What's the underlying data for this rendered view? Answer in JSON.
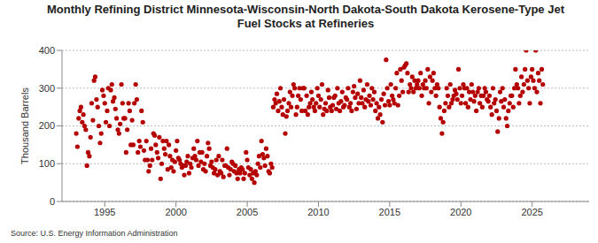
{
  "chart_data": {
    "type": "scatter",
    "title": "Monthly Refining District Minnesota-Wisconsin-North Dakota-South Dakota Kerosene-Type Jet Fuel Stocks at Refineries",
    "y_label": "Thousand Barrels",
    "source": "Source: U.S. Energy Information Administration",
    "color": "#b40000",
    "marker": "circle",
    "grid": true,
    "xlim": [
      1992,
      2029
    ],
    "xticks": [
      1995,
      2000,
      2005,
      2010,
      2015,
      2020,
      2025
    ],
    "ylim": [
      0,
      400
    ],
    "yticks": [
      0,
      100,
      200,
      300,
      400
    ],
    "x": [
      1993.0,
      1993.08,
      1993.17,
      1993.25,
      1993.33,
      1993.42,
      1993.5,
      1993.58,
      1993.67,
      1993.75,
      1993.83,
      1993.92,
      1994.0,
      1994.08,
      1994.17,
      1994.25,
      1994.33,
      1994.42,
      1994.5,
      1994.58,
      1994.67,
      1994.75,
      1994.83,
      1994.92,
      1995.0,
      1995.08,
      1995.17,
      1995.25,
      1995.33,
      1995.42,
      1995.5,
      1995.58,
      1995.67,
      1995.75,
      1995.83,
      1995.92,
      1996.0,
      1996.08,
      1996.17,
      1996.25,
      1996.33,
      1996.42,
      1996.5,
      1996.58,
      1996.67,
      1996.75,
      1996.83,
      1996.92,
      1997.0,
      1997.08,
      1997.17,
      1997.25,
      1997.33,
      1997.42,
      1997.5,
      1997.58,
      1997.67,
      1997.75,
      1997.83,
      1997.92,
      1998.0,
      1998.08,
      1998.17,
      1998.25,
      1998.33,
      1998.42,
      1998.5,
      1998.58,
      1998.67,
      1998.75,
      1998.83,
      1998.92,
      1999.0,
      1999.08,
      1999.17,
      1999.25,
      1999.33,
      1999.42,
      1999.5,
      1999.58,
      1999.67,
      1999.75,
      1999.83,
      1999.92,
      2000.0,
      2000.08,
      2000.17,
      2000.25,
      2000.33,
      2000.42,
      2000.5,
      2000.58,
      2000.67,
      2000.75,
      2000.83,
      2000.92,
      2001.0,
      2001.08,
      2001.17,
      2001.25,
      2001.33,
      2001.42,
      2001.5,
      2001.58,
      2001.67,
      2001.75,
      2001.83,
      2001.92,
      2002.0,
      2002.08,
      2002.17,
      2002.25,
      2002.33,
      2002.42,
      2002.5,
      2002.58,
      2002.67,
      2002.75,
      2002.83,
      2002.92,
      2003.0,
      2003.08,
      2003.17,
      2003.25,
      2003.33,
      2003.42,
      2003.5,
      2003.58,
      2003.67,
      2003.75,
      2003.83,
      2003.92,
      2004.0,
      2004.08,
      2004.17,
      2004.25,
      2004.33,
      2004.42,
      2004.5,
      2004.58,
      2004.67,
      2004.75,
      2004.83,
      2004.92,
      2005.0,
      2005.08,
      2005.17,
      2005.25,
      2005.33,
      2005.42,
      2005.5,
      2005.58,
      2005.67,
      2005.75,
      2005.83,
      2005.92,
      2006.0,
      2006.08,
      2006.17,
      2006.25,
      2006.33,
      2006.42,
      2006.5,
      2006.58,
      2006.67,
      2006.75,
      2006.83,
      2006.92,
      2007.0,
      2007.08,
      2007.17,
      2007.25,
      2007.33,
      2007.42,
      2007.5,
      2007.58,
      2007.67,
      2007.75,
      2007.83,
      2007.92,
      2008.0,
      2008.08,
      2008.17,
      2008.25,
      2008.33,
      2008.42,
      2008.5,
      2008.58,
      2008.67,
      2008.75,
      2008.83,
      2008.92,
      2009.0,
      2009.08,
      2009.17,
      2009.25,
      2009.33,
      2009.42,
      2009.5,
      2009.58,
      2009.67,
      2009.75,
      2009.83,
      2009.92,
      2010.0,
      2010.08,
      2010.17,
      2010.25,
      2010.33,
      2010.42,
      2010.5,
      2010.58,
      2010.67,
      2010.75,
      2010.83,
      2010.92,
      2011.0,
      2011.08,
      2011.17,
      2011.25,
      2011.33,
      2011.42,
      2011.5,
      2011.58,
      2011.67,
      2011.75,
      2011.83,
      2011.92,
      2012.0,
      2012.08,
      2012.17,
      2012.25,
      2012.33,
      2012.42,
      2012.5,
      2012.58,
      2012.67,
      2012.75,
      2012.83,
      2012.92,
      2013.0,
      2013.08,
      2013.17,
      2013.25,
      2013.33,
      2013.42,
      2013.5,
      2013.58,
      2013.67,
      2013.75,
      2013.83,
      2013.92,
      2014.0,
      2014.08,
      2014.17,
      2014.25,
      2014.33,
      2014.42,
      2014.5,
      2014.58,
      2014.67,
      2014.75,
      2014.83,
      2014.92,
      2015.0,
      2015.08,
      2015.17,
      2015.25,
      2015.33,
      2015.42,
      2015.5,
      2015.58,
      2015.67,
      2015.75,
      2015.83,
      2015.92,
      2016.0,
      2016.08,
      2016.17,
      2016.25,
      2016.33,
      2016.42,
      2016.5,
      2016.58,
      2016.67,
      2016.75,
      2016.83,
      2016.92,
      2017.0,
      2017.08,
      2017.17,
      2017.25,
      2017.33,
      2017.42,
      2017.5,
      2017.58,
      2017.67,
      2017.75,
      2017.83,
      2017.92,
      2018.0,
      2018.08,
      2018.17,
      2018.25,
      2018.33,
      2018.42,
      2018.5,
      2018.58,
      2018.67,
      2018.75,
      2018.83,
      2018.92,
      2019.0,
      2019.08,
      2019.17,
      2019.25,
      2019.33,
      2019.42,
      2019.5,
      2019.58,
      2019.67,
      2019.75,
      2019.83,
      2019.92,
      2020.0,
      2020.08,
      2020.17,
      2020.25,
      2020.33,
      2020.42,
      2020.5,
      2020.58,
      2020.67,
      2020.75,
      2020.83,
      2020.92,
      2021.0,
      2021.08,
      2021.17,
      2021.25,
      2021.33,
      2021.42,
      2021.5,
      2021.58,
      2021.67,
      2021.75,
      2021.83,
      2021.92,
      2022.0,
      2022.08,
      2022.17,
      2022.25,
      2022.33,
      2022.42,
      2022.5,
      2022.58,
      2022.67,
      2022.75,
      2022.83,
      2022.92,
      2023.0,
      2023.08,
      2023.17,
      2023.25,
      2023.33,
      2023.42,
      2023.5,
      2023.58,
      2023.67,
      2023.75,
      2023.83,
      2023.92,
      2024.0,
      2024.08,
      2024.17,
      2024.25,
      2024.33,
      2024.42,
      2024.5,
      2024.58,
      2024.67,
      2024.75,
      2024.83,
      2024.92,
      2025.0,
      2025.08,
      2025.17,
      2025.25,
      2025.33,
      2025.42,
      2025.5,
      2025.58,
      2025.67,
      2025.75
    ],
    "values": [
      180,
      145,
      220,
      240,
      250,
      210,
      230,
      200,
      190,
      95,
      130,
      120,
      170,
      260,
      215,
      320,
      330,
      270,
      250,
      200,
      155,
      180,
      295,
      280,
      260,
      210,
      240,
      300,
      200,
      295,
      310,
      265,
      275,
      245,
      220,
      190,
      180,
      205,
      310,
      260,
      220,
      220,
      130,
      190,
      260,
      240,
      150,
      215,
      150,
      260,
      310,
      270,
      130,
      160,
      145,
      240,
      210,
      135,
      110,
      160,
      110,
      80,
      95,
      140,
      110,
      180,
      175,
      150,
      130,
      115,
      170,
      60,
      100,
      160,
      140,
      125,
      160,
      85,
      150,
      120,
      90,
      110,
      80,
      105,
      135,
      160,
      115,
      110,
      100,
      90,
      95,
      70,
      95,
      105,
      120,
      75,
      100,
      90,
      115,
      140,
      120,
      110,
      160,
      95,
      130,
      105,
      130,
      85,
      100,
      80,
      120,
      155,
      140,
      95,
      105,
      90,
      75,
      85,
      110,
      70,
      120,
      80,
      75,
      110,
      65,
      95,
      95,
      140,
      90,
      70,
      85,
      105,
      100,
      80,
      95,
      75,
      60,
      85,
      75,
      90,
      85,
      60,
      75,
      130,
      110,
      90,
      70,
      85,
      60,
      75,
      50,
      80,
      70,
      100,
      120,
      90,
      160,
      125,
      115,
      95,
      140,
      120,
      80,
      75,
      100,
      90,
      250,
      270,
      260,
      285,
      240,
      265,
      300,
      250,
      230,
      270,
      180,
      225,
      240,
      260,
      290,
      250,
      280,
      310,
      300,
      230,
      250,
      280,
      300,
      270,
      240,
      300,
      300,
      240,
      280,
      230,
      250,
      260,
      290,
      270,
      250,
      240,
      260,
      300,
      280,
      250,
      270,
      310,
      230,
      245,
      260,
      240,
      295,
      275,
      250,
      240,
      255,
      275,
      280,
      245,
      300,
      260,
      240,
      265,
      290,
      250,
      255,
      275,
      270,
      300,
      250,
      260,
      240,
      290,
      305,
      275,
      245,
      285,
      260,
      320,
      275,
      260,
      295,
      250,
      270,
      310,
      265,
      280,
      255,
      300,
      270,
      290,
      240,
      260,
      220,
      250,
      230,
      270,
      210,
      285,
      255,
      375,
      300,
      265,
      255,
      310,
      280,
      270,
      260,
      300,
      340,
      255,
      280,
      350,
      320,
      290,
      355,
      360,
      365,
      340,
      290,
      310,
      300,
      330,
      290,
      320,
      300,
      310,
      320,
      300,
      340,
      280,
      310,
      300,
      320,
      300,
      350,
      260,
      330,
      290,
      320,
      340,
      300,
      280,
      310,
      300,
      250,
      220,
      180,
      210,
      240,
      260,
      300,
      280,
      250,
      310,
      260,
      270,
      280,
      295,
      285,
      270,
      350,
      300,
      260,
      280,
      310,
      300,
      260,
      300,
      250,
      290,
      270,
      310,
      290,
      265,
      280,
      240,
      290,
      300,
      260,
      280,
      250,
      280,
      300,
      290,
      270,
      265,
      280,
      250,
      230,
      300,
      260,
      270,
      240,
      185,
      220,
      290,
      265,
      300,
      250,
      270,
      220,
      200,
      240,
      260,
      280,
      280,
      250,
      300,
      350,
      310,
      300,
      260,
      280,
      330,
      290,
      310,
      350,
      400,
      320,
      300,
      260,
      330,
      350,
      320,
      300,
      400,
      290,
      340,
      320,
      260,
      350,
      310
    ]
  }
}
